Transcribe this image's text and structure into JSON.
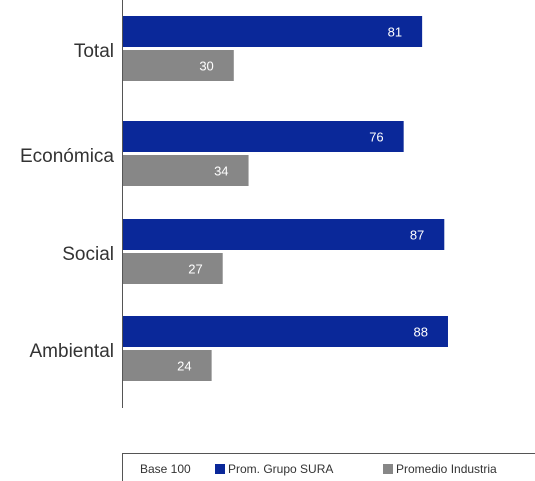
{
  "chart_data": {
    "type": "bar",
    "orientation": "horizontal",
    "categories": [
      "Total",
      "Económica",
      "Social",
      "Ambiental"
    ],
    "series": [
      {
        "name": "Prom. Grupo SURA",
        "color": "#0a2899",
        "values": [
          81,
          76,
          87,
          88
        ]
      },
      {
        "name": "Promedio Industria",
        "color": "#878787",
        "values": [
          30,
          34,
          27,
          24
        ]
      }
    ],
    "xlim": [
      0,
      100
    ],
    "grid": false,
    "legend_position": "bottom",
    "base_label": "Base 100"
  }
}
